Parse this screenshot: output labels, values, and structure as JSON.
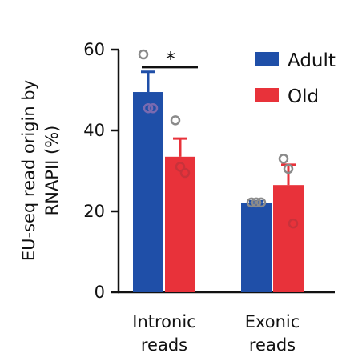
{
  "chart_data": {
    "type": "bar",
    "ylabel_line1": "EU-seq read origin by",
    "ylabel_line2": "RNAPII (%)",
    "xlabel": "",
    "title": "",
    "ylim": [
      0,
      60
    ],
    "yticks": [
      "0",
      "20",
      "40",
      "60"
    ],
    "categories": [
      {
        "line1": "Intronic",
        "line2": "reads"
      },
      {
        "line1": "Exonic",
        "line2": "reads"
      }
    ],
    "series": [
      {
        "name": "Adult",
        "color": "#1f4fa8",
        "values": [
          49.5,
          22
        ],
        "errors": [
          5,
          0.5
        ],
        "points": [
          [
            58.8,
            45.5,
            45.5
          ],
          [
            22.2,
            22.2,
            22.2
          ]
        ]
      },
      {
        "name": "Old",
        "color": "#e8323a",
        "values": [
          33.5,
          26.5
        ],
        "errors": [
          4.5,
          5
        ],
        "points": [
          [
            42.5,
            31,
            29.5
          ],
          [
            33,
            30.5,
            17
          ]
        ]
      }
    ],
    "legend_position": "top-right",
    "significance": {
      "label": "*",
      "y": 58
    }
  }
}
